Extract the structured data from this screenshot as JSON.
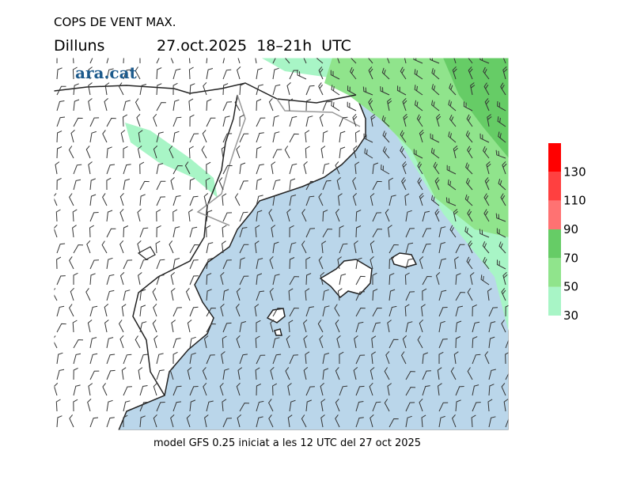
{
  "header": {
    "title": "COPS DE VENT MAX.",
    "day": "Dilluns",
    "time": "27.oct.2025  18–21h  UTC",
    "logo": "ara.cat"
  },
  "footer": "model GFS 0.25 iniciat a les 12 UTC del 27 oct 2025",
  "legend": {
    "levels": [
      30,
      50,
      70,
      90,
      110,
      130
    ],
    "colors": [
      "#a8f5c6",
      "#90e48c",
      "#66cc66",
      "#ff7272",
      "#ff4040",
      "#ff0000"
    ]
  }
}
